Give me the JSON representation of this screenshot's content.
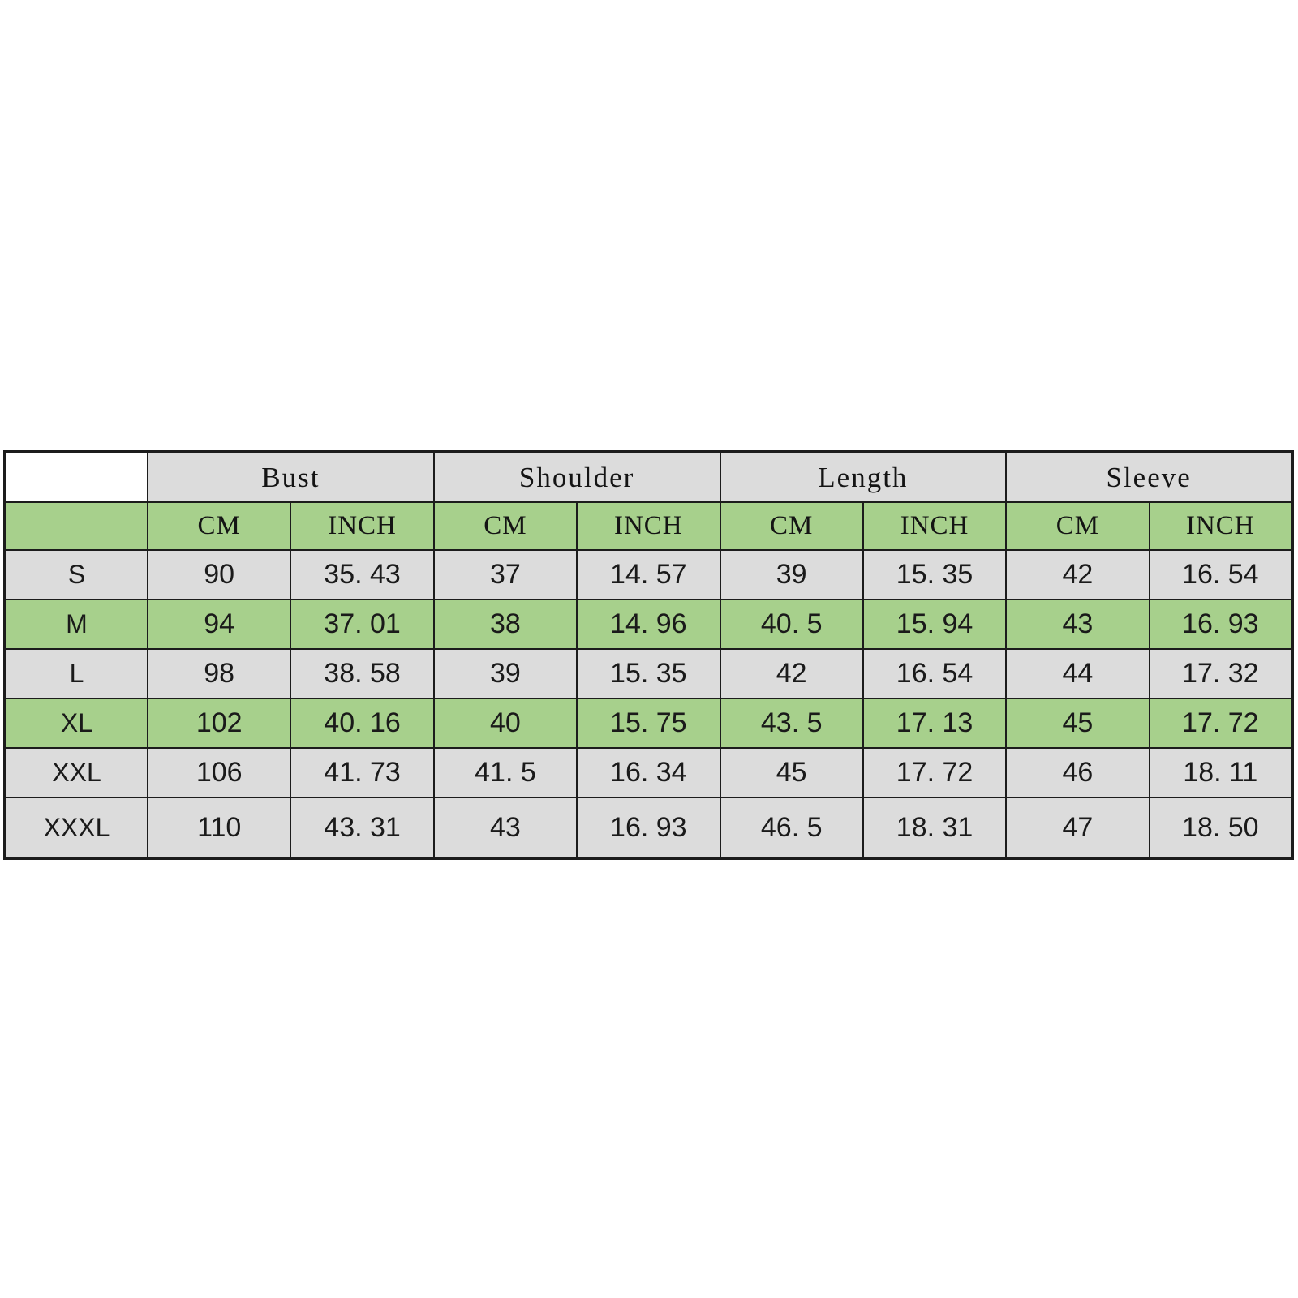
{
  "page": {
    "background": "#ffffff"
  },
  "colors": {
    "row_gray": "#dcdcdc",
    "row_green": "#a7d08c",
    "corner_white": "#ffffff",
    "border": "#1c1c1c",
    "text": "#1a1a1a"
  },
  "table": {
    "corner_label": "",
    "group_headers": [
      "Bust",
      "Shoulder",
      "Length",
      "Sleeve"
    ],
    "unit_row": [
      "CM",
      "INCH",
      "CM",
      "INCH",
      "CM",
      "INCH",
      "CM",
      "INCH"
    ],
    "rows": [
      {
        "size": "S",
        "shade": "gray",
        "values": [
          "90",
          "35. 43",
          "37",
          "14. 57",
          "39",
          "15. 35",
          "42",
          "16. 54"
        ]
      },
      {
        "size": "M",
        "shade": "green",
        "values": [
          "94",
          "37. 01",
          "38",
          "14. 96",
          "40. 5",
          "15. 94",
          "43",
          "16. 93"
        ]
      },
      {
        "size": "L",
        "shade": "gray",
        "values": [
          "98",
          "38. 58",
          "39",
          "15. 35",
          "42",
          "16. 54",
          "44",
          "17. 32"
        ]
      },
      {
        "size": "XL",
        "shade": "green",
        "values": [
          "102",
          "40. 16",
          "40",
          "15. 75",
          "43. 5",
          "17. 13",
          "45",
          "17. 72"
        ]
      },
      {
        "size": "XXL",
        "shade": "gray",
        "values": [
          "106",
          "41. 73",
          "41. 5",
          "16. 34",
          "45",
          "17. 72",
          "46",
          "18. 11"
        ]
      },
      {
        "size": "XXXL",
        "shade": "gray",
        "values": [
          "110",
          "43. 31",
          "43",
          "16. 93",
          "46. 5",
          "18. 31",
          "47",
          "18. 50"
        ]
      }
    ]
  },
  "chart_data": {
    "type": "table",
    "columns": [
      "Size",
      "Bust CM",
      "Bust INCH",
      "Shoulder CM",
      "Shoulder INCH",
      "Length CM",
      "Length INCH",
      "Sleeve CM",
      "Sleeve INCH"
    ],
    "rows": [
      [
        "S",
        90,
        35.43,
        37,
        14.57,
        39,
        15.35,
        42,
        16.54
      ],
      [
        "M",
        94,
        37.01,
        38,
        14.96,
        40.5,
        15.94,
        43,
        16.93
      ],
      [
        "L",
        98,
        38.58,
        39,
        15.35,
        42,
        16.54,
        44,
        17.32
      ],
      [
        "XL",
        102,
        40.16,
        40,
        15.75,
        43.5,
        17.13,
        45,
        17.72
      ],
      [
        "XXL",
        106,
        41.73,
        41.5,
        16.34,
        45,
        17.72,
        46,
        18.11
      ],
      [
        "XXXL",
        110,
        43.31,
        43,
        16.93,
        46.5,
        18.31,
        47,
        18.5
      ]
    ],
    "layout_hints": {
      "header_fill": "#dcdcdc",
      "unit_row_fill": "#a7d08c",
      "row_fills": [
        "#dcdcdc",
        "#a7d08c",
        "#dcdcdc",
        "#a7d08c",
        "#dcdcdc",
        "#dcdcdc"
      ],
      "grid": true
    }
  }
}
